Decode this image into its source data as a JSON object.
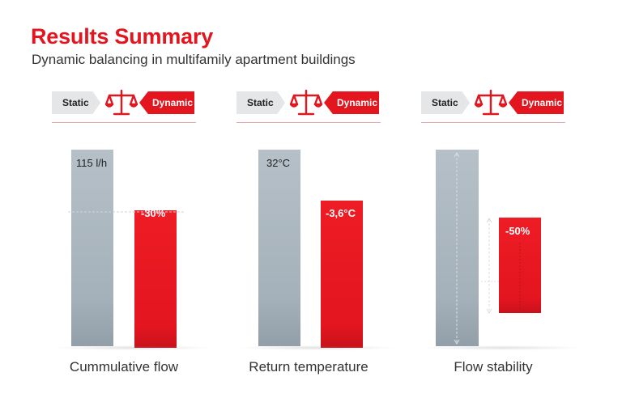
{
  "header": {
    "title": "Results Summary",
    "subtitle": "Dynamic balancing in multifamily apartment buildings"
  },
  "legend_tags": {
    "static": "Static",
    "dynamic": "Dynamic"
  },
  "colors": {
    "accent_red": "#e3151f",
    "static_grey": "#a9b4bd",
    "tag_grey": "#e4e6e8"
  },
  "icons": {
    "scale": "balance-scale-icon"
  },
  "chart_data": [
    {
      "type": "bar",
      "title": "Cummulative flow",
      "categories": [
        "Static",
        "Dynamic"
      ],
      "static_label": "115 l/h",
      "dynamic_label": "-30%",
      "values": [
        100,
        70
      ]
    },
    {
      "type": "bar",
      "title": "Return temperature",
      "categories": [
        "Static",
        "Dynamic"
      ],
      "static_label": "32°C",
      "dynamic_label": "-3,6°C",
      "values": [
        100,
        75
      ]
    },
    {
      "type": "bar",
      "title": "Flow stability",
      "categories": [
        "Static",
        "Dynamic"
      ],
      "static_label": "",
      "dynamic_label": "-50%",
      "values": [
        100,
        50
      ]
    }
  ]
}
